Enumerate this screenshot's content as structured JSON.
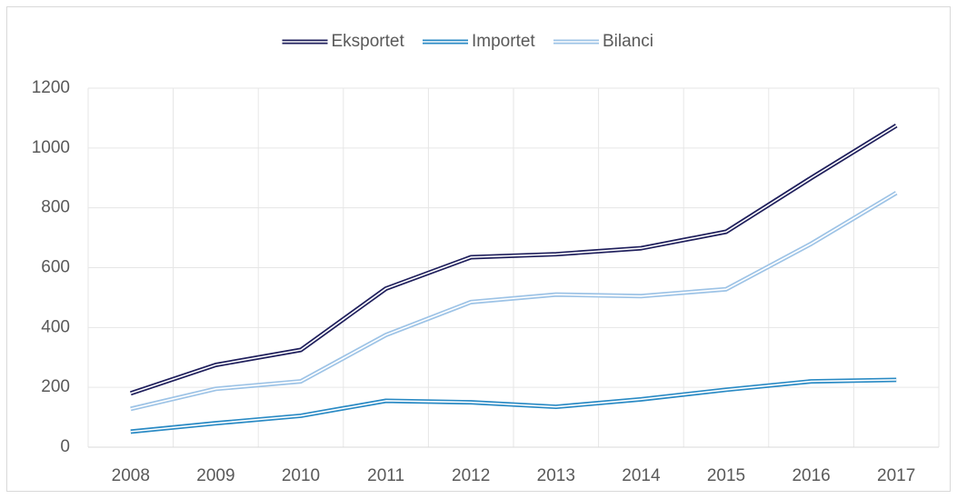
{
  "chart_data": {
    "type": "line",
    "categories": [
      "2008",
      "2009",
      "2010",
      "2011",
      "2012",
      "2013",
      "2014",
      "2015",
      "2016",
      "2017"
    ],
    "series": [
      {
        "name": "Eksportet",
        "color": "#1f1f5c",
        "values": [
          180,
          275,
          325,
          530,
          635,
          645,
          665,
          720,
          900,
          1075
        ]
      },
      {
        "name": "Importet",
        "color": "#2a8ac4",
        "values": [
          52,
          80,
          105,
          155,
          150,
          135,
          160,
          192,
          220,
          225
        ]
      },
      {
        "name": "Bilanci",
        "color": "#9dc3e6",
        "values": [
          128,
          195,
          220,
          375,
          485,
          510,
          505,
          528,
          680,
          850
        ]
      }
    ],
    "ylim": [
      0,
      1200
    ],
    "yticks": [
      0,
      200,
      400,
      600,
      800,
      1000,
      1200
    ],
    "grid": true,
    "legend": "top"
  }
}
